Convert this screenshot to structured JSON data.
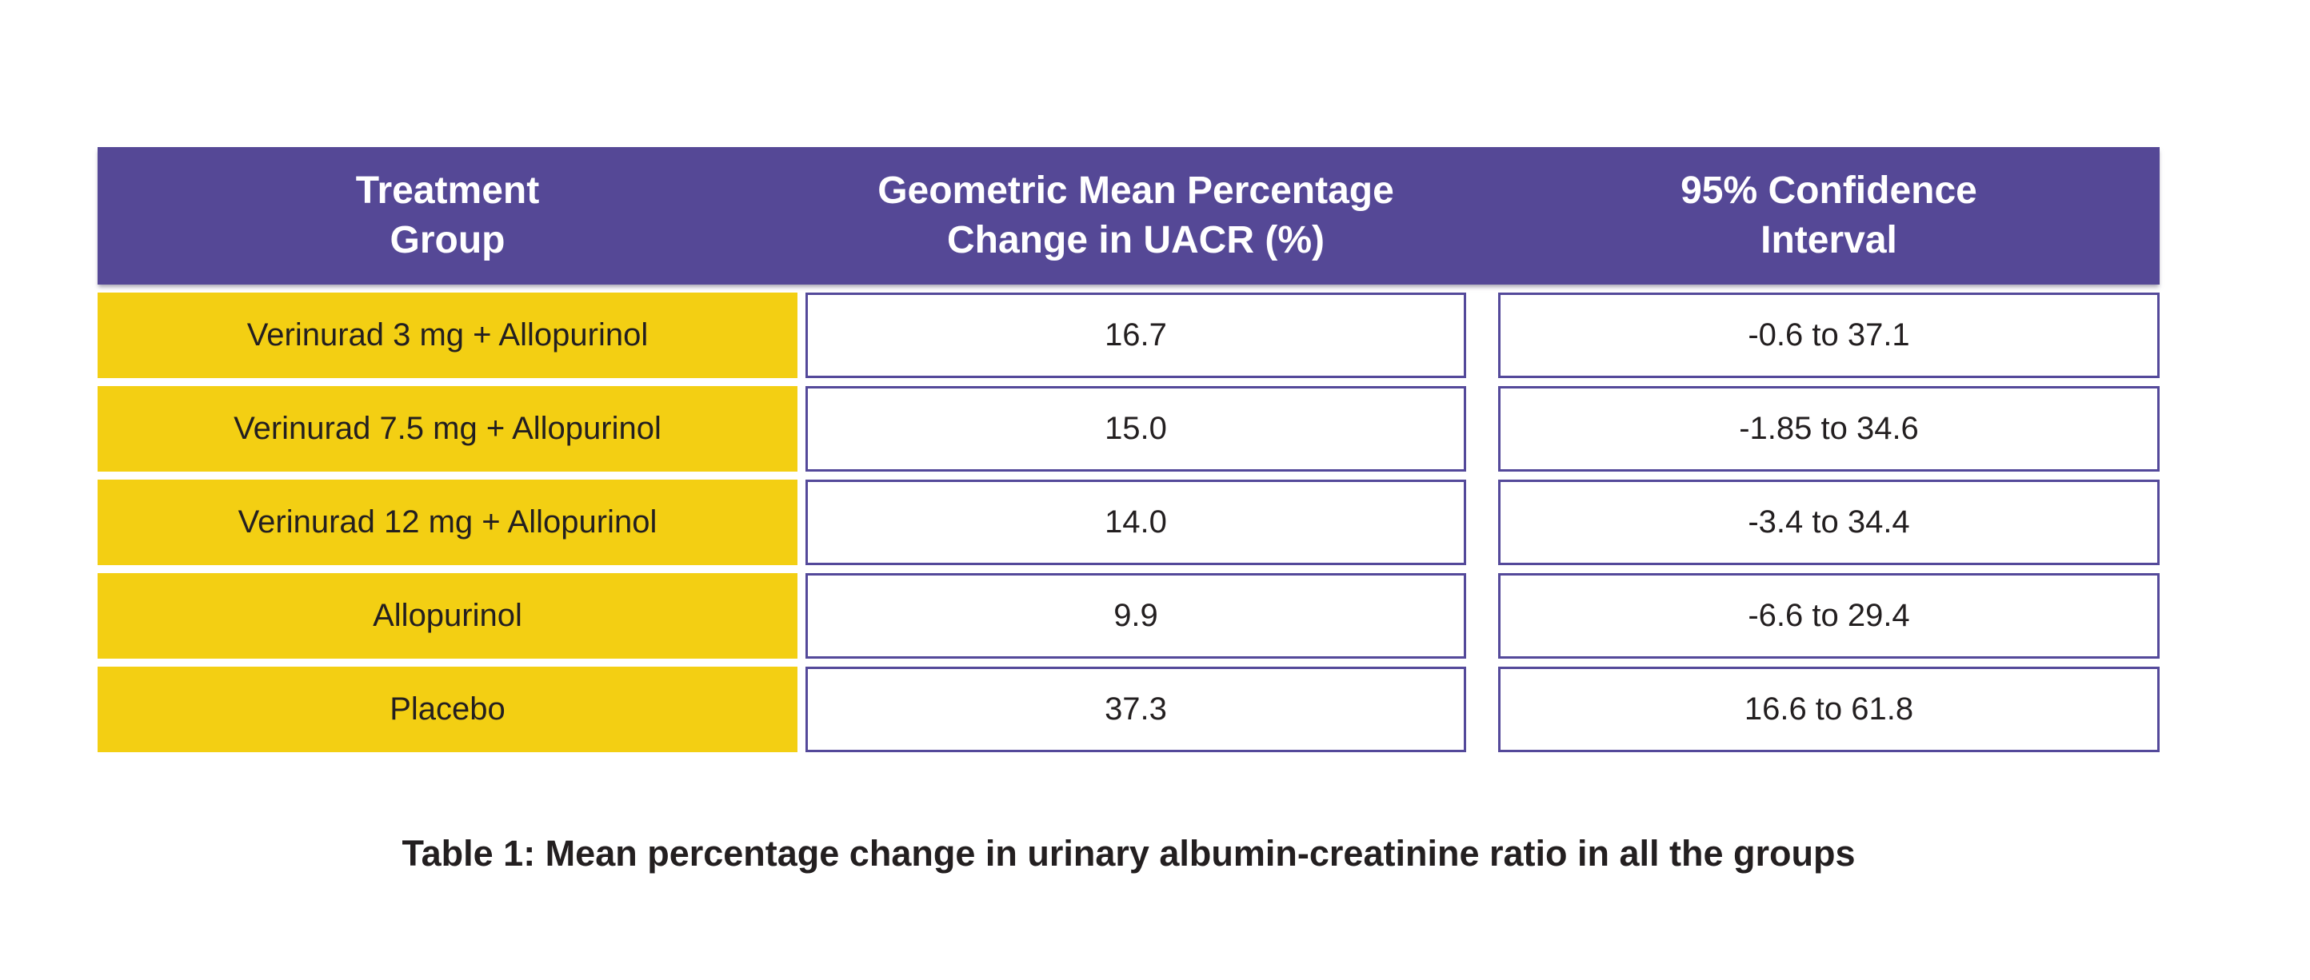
{
  "figure": {
    "header": {
      "treatment": {
        "line1": "Treatment",
        "line2": "Group"
      },
      "change": {
        "line1": "Geometric Mean Percentage",
        "line2": "Change in UACR (%)"
      },
      "ci": {
        "line1": "95% Confidence",
        "line2": "Interval"
      }
    },
    "rows": [
      {
        "group": "Verinurad 3 mg + Allopurinol",
        "change": "16.7",
        "ci": "-0.6 to 37.1"
      },
      {
        "group": "Verinurad 7.5 mg + Allopurinol",
        "change": "15.0",
        "ci": "-1.85 to 34.6"
      },
      {
        "group": "Verinurad 12 mg + Allopurinol",
        "change": "14.0",
        "ci": "-3.4 to 34.4"
      },
      {
        "group": "Allopurinol",
        "change": "9.9",
        "ci": "-6.6 to 29.4"
      },
      {
        "group": "Placebo",
        "change": "37.3",
        "ci": "16.6 to 61.8"
      }
    ],
    "caption": "Table 1: Mean percentage change in urinary albumin-creatinine ratio in all the groups",
    "colors": {
      "header_bg": "#554896",
      "header_text": "#FFFFFF",
      "row_label_bg": "#F3CF13",
      "cell_border": "#54499A",
      "cell_text": "#231F20",
      "page_bg": "#FFFFFF"
    }
  },
  "chart_data": {
    "type": "table",
    "title": "Table 1: Mean percentage change in urinary albumin-creatinine ratio in all the groups",
    "columns": [
      "Treatment Group",
      "Geometric Mean Percentage Change in UACR (%)",
      "95% Confidence Interval"
    ],
    "rows": [
      [
        "Verinurad 3 mg + Allopurinol",
        16.7,
        "-0.6 to 37.1"
      ],
      [
        "Verinurad 7.5 mg + Allopurinol",
        15.0,
        "-1.85 to 34.6"
      ],
      [
        "Verinurad 12 mg + Allopurinol",
        14.0,
        "-3.4 to 34.4"
      ],
      [
        "Allopurinol",
        9.9,
        "-6.6 to 29.4"
      ],
      [
        "Placebo",
        37.3,
        "16.6 to 61.8"
      ]
    ]
  }
}
